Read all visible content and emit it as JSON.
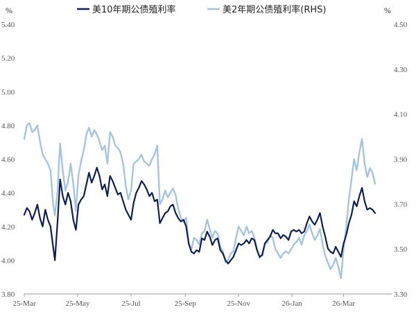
{
  "chart_data": {
    "type": "line",
    "title": "",
    "left_unit": "%",
    "right_unit": "%",
    "x_labels": [
      "25-Mar",
      "25-May",
      "25-Jul",
      "25-Sep",
      "25-Nov",
      "26-Jan",
      "26-Mar"
    ],
    "x_range": [
      "2025-03-01",
      "2026-04-25"
    ],
    "y_left": {
      "range": [
        3.8,
        5.4
      ],
      "ticks": [
        "5.40",
        "5.20",
        "5.00",
        "4.80",
        "4.60",
        "4.40",
        "4.20",
        "4.00",
        "3.80"
      ]
    },
    "y_right": {
      "range": [
        3.3,
        4.5
      ],
      "ticks": [
        "4.50",
        "4.30",
        "4.10",
        "3.90",
        "3.70",
        "3.50",
        "3.30"
      ]
    },
    "grid": false,
    "legend": "top-center",
    "series": [
      {
        "name": "美10年期公债殖利率",
        "axis": "left",
        "color": "#0d1f4f",
        "points": [
          [
            "2025-03-01",
            4.27
          ],
          [
            "2025-03-04",
            4.31
          ],
          [
            "2025-03-07",
            4.29
          ],
          [
            "2025-03-10",
            4.24
          ],
          [
            "2025-03-13",
            4.28
          ],
          [
            "2025-03-16",
            4.33
          ],
          [
            "2025-03-19",
            4.25
          ],
          [
            "2025-03-22",
            4.2
          ],
          [
            "2025-03-25",
            4.3
          ],
          [
            "2025-03-28",
            4.24
          ],
          [
            "2025-03-31",
            4.2
          ],
          [
            "2025-04-03",
            4.08
          ],
          [
            "2025-04-05",
            4.0
          ],
          [
            "2025-04-08",
            4.23
          ],
          [
            "2025-04-11",
            4.48
          ],
          [
            "2025-04-14",
            4.38
          ],
          [
            "2025-04-17",
            4.33
          ],
          [
            "2025-04-20",
            4.4
          ],
          [
            "2025-04-23",
            4.35
          ],
          [
            "2025-04-26",
            4.24
          ],
          [
            "2025-04-29",
            4.18
          ],
          [
            "2025-05-02",
            4.33
          ],
          [
            "2025-05-05",
            4.36
          ],
          [
            "2025-05-08",
            4.38
          ],
          [
            "2025-05-11",
            4.45
          ],
          [
            "2025-05-14",
            4.52
          ],
          [
            "2025-05-17",
            4.46
          ],
          [
            "2025-05-20",
            4.5
          ],
          [
            "2025-05-23",
            4.55
          ],
          [
            "2025-05-26",
            4.5
          ],
          [
            "2025-05-29",
            4.42
          ],
          [
            "2025-06-01",
            4.45
          ],
          [
            "2025-06-04",
            4.38
          ],
          [
            "2025-06-07",
            4.5
          ],
          [
            "2025-06-10",
            4.47
          ],
          [
            "2025-06-13",
            4.43
          ],
          [
            "2025-06-16",
            4.39
          ],
          [
            "2025-06-19",
            4.4
          ],
          [
            "2025-06-22",
            4.35
          ],
          [
            "2025-06-25",
            4.3
          ],
          [
            "2025-06-28",
            4.27
          ],
          [
            "2025-07-01",
            4.24
          ],
          [
            "2025-07-04",
            4.34
          ],
          [
            "2025-07-07",
            4.4
          ],
          [
            "2025-07-10",
            4.43
          ],
          [
            "2025-07-13",
            4.47
          ],
          [
            "2025-07-16",
            4.45
          ],
          [
            "2025-07-19",
            4.42
          ],
          [
            "2025-07-22",
            4.38
          ],
          [
            "2025-07-25",
            4.4
          ],
          [
            "2025-07-28",
            4.35
          ],
          [
            "2025-07-31",
            4.36
          ],
          [
            "2025-08-03",
            4.22
          ],
          [
            "2025-08-06",
            4.25
          ],
          [
            "2025-08-09",
            4.28
          ],
          [
            "2025-08-12",
            4.29
          ],
          [
            "2025-08-15",
            4.32
          ],
          [
            "2025-08-18",
            4.33
          ],
          [
            "2025-08-21",
            4.28
          ],
          [
            "2025-08-24",
            4.25
          ],
          [
            "2025-08-27",
            4.23
          ],
          [
            "2025-08-30",
            4.24
          ],
          [
            "2025-09-02",
            4.2
          ],
          [
            "2025-09-05",
            4.1
          ],
          [
            "2025-09-08",
            4.05
          ],
          [
            "2025-09-11",
            4.04
          ],
          [
            "2025-09-14",
            4.06
          ],
          [
            "2025-09-17",
            4.05
          ],
          [
            "2025-09-20",
            4.13
          ],
          [
            "2025-09-23",
            4.12
          ],
          [
            "2025-09-26",
            4.17
          ],
          [
            "2025-09-29",
            4.14
          ],
          [
            "2025-10-02",
            4.09
          ],
          [
            "2025-10-05",
            4.12
          ],
          [
            "2025-10-08",
            4.13
          ],
          [
            "2025-10-11",
            4.06
          ],
          [
            "2025-10-14",
            4.04
          ],
          [
            "2025-10-17",
            4.0
          ],
          [
            "2025-10-20",
            3.98
          ],
          [
            "2025-10-23",
            4.0
          ],
          [
            "2025-10-26",
            4.02
          ],
          [
            "2025-10-29",
            4.06
          ],
          [
            "2025-11-01",
            4.1
          ],
          [
            "2025-11-04",
            4.09
          ],
          [
            "2025-11-07",
            4.1
          ],
          [
            "2025-11-10",
            4.12
          ],
          [
            "2025-11-13",
            4.1
          ],
          [
            "2025-11-16",
            4.13
          ],
          [
            "2025-11-19",
            4.12
          ],
          [
            "2025-11-22",
            4.06
          ],
          [
            "2025-11-25",
            4.02
          ],
          [
            "2025-11-28",
            4.03
          ],
          [
            "2025-12-01",
            4.1
          ],
          [
            "2025-12-04",
            4.12
          ],
          [
            "2025-12-07",
            4.14
          ],
          [
            "2025-12-10",
            4.18
          ],
          [
            "2025-12-13",
            4.16
          ],
          [
            "2025-12-16",
            4.16
          ],
          [
            "2025-12-19",
            4.13
          ],
          [
            "2025-12-22",
            4.15
          ],
          [
            "2025-12-25",
            4.14
          ],
          [
            "2025-12-28",
            4.12
          ],
          [
            "2025-12-31",
            4.17
          ],
          [
            "2026-01-03",
            4.18
          ],
          [
            "2026-01-06",
            4.17
          ],
          [
            "2026-01-09",
            4.18
          ],
          [
            "2026-01-12",
            4.16
          ],
          [
            "2026-01-15",
            4.17
          ],
          [
            "2026-01-18",
            4.22
          ],
          [
            "2026-01-21",
            4.26
          ],
          [
            "2026-01-24",
            4.23
          ],
          [
            "2026-01-27",
            4.21
          ],
          [
            "2026-01-30",
            4.24
          ],
          [
            "2026-02-02",
            4.28
          ],
          [
            "2026-02-05",
            4.2
          ],
          [
            "2026-02-08",
            4.14
          ],
          [
            "2026-02-11",
            4.07
          ],
          [
            "2026-02-14",
            4.05
          ],
          [
            "2026-02-17",
            4.04
          ],
          [
            "2026-02-20",
            4.08
          ],
          [
            "2026-02-23",
            4.05
          ],
          [
            "2026-02-26",
            4.02
          ],
          [
            "2026-03-01",
            4.1
          ],
          [
            "2026-03-04",
            4.15
          ],
          [
            "2026-03-07",
            4.22
          ],
          [
            "2026-03-10",
            4.27
          ],
          [
            "2026-03-13",
            4.35
          ],
          [
            "2026-03-16",
            4.32
          ],
          [
            "2026-03-19",
            4.38
          ],
          [
            "2026-03-22",
            4.43
          ],
          [
            "2026-03-25",
            4.35
          ],
          [
            "2026-03-28",
            4.3
          ],
          [
            "2026-03-31",
            4.31
          ],
          [
            "2026-04-03",
            4.3
          ],
          [
            "2026-04-06",
            4.28
          ]
        ]
      },
      {
        "name": "美2年期公债殖利率(RHS)",
        "axis": "right",
        "color": "#a6c4e0",
        "points": [
          [
            "2025-03-01",
            3.99
          ],
          [
            "2025-03-04",
            4.05
          ],
          [
            "2025-03-07",
            4.06
          ],
          [
            "2025-03-10",
            4.02
          ],
          [
            "2025-03-13",
            4.03
          ],
          [
            "2025-03-16",
            4.05
          ],
          [
            "2025-03-19",
            3.98
          ],
          [
            "2025-03-22",
            3.92
          ],
          [
            "2025-03-25",
            3.9
          ],
          [
            "2025-03-28",
            3.88
          ],
          [
            "2025-03-31",
            3.85
          ],
          [
            "2025-04-03",
            3.7
          ],
          [
            "2025-04-05",
            3.65
          ],
          [
            "2025-04-08",
            3.76
          ],
          [
            "2025-04-11",
            3.97
          ],
          [
            "2025-04-14",
            3.85
          ],
          [
            "2025-04-17",
            3.76
          ],
          [
            "2025-04-20",
            3.8
          ],
          [
            "2025-04-23",
            3.88
          ],
          [
            "2025-04-26",
            3.79
          ],
          [
            "2025-04-29",
            3.67
          ],
          [
            "2025-05-02",
            3.83
          ],
          [
            "2025-05-05",
            3.89
          ],
          [
            "2025-05-08",
            3.94
          ],
          [
            "2025-05-11",
            4.01
          ],
          [
            "2025-05-14",
            4.04
          ],
          [
            "2025-05-17",
            4.0
          ],
          [
            "2025-05-20",
            4.03
          ],
          [
            "2025-05-23",
            4.01
          ],
          [
            "2025-05-26",
            3.98
          ],
          [
            "2025-05-29",
            3.94
          ],
          [
            "2025-06-01",
            3.96
          ],
          [
            "2025-06-04",
            3.88
          ],
          [
            "2025-06-07",
            4.02
          ],
          [
            "2025-06-10",
            4.0
          ],
          [
            "2025-06-13",
            3.96
          ],
          [
            "2025-06-16",
            3.95
          ],
          [
            "2025-06-19",
            3.93
          ],
          [
            "2025-06-22",
            3.88
          ],
          [
            "2025-06-25",
            3.78
          ],
          [
            "2025-06-28",
            3.72
          ],
          [
            "2025-07-01",
            3.76
          ],
          [
            "2025-07-04",
            3.88
          ],
          [
            "2025-07-07",
            3.89
          ],
          [
            "2025-07-10",
            3.9
          ],
          [
            "2025-07-13",
            3.92
          ],
          [
            "2025-07-16",
            3.89
          ],
          [
            "2025-07-19",
            3.88
          ],
          [
            "2025-07-22",
            3.87
          ],
          [
            "2025-07-25",
            3.9
          ],
          [
            "2025-07-28",
            3.92
          ],
          [
            "2025-07-31",
            3.96
          ],
          [
            "2025-08-03",
            3.7
          ],
          [
            "2025-08-06",
            3.72
          ],
          [
            "2025-08-09",
            3.76
          ],
          [
            "2025-08-12",
            3.73
          ],
          [
            "2025-08-15",
            3.75
          ],
          [
            "2025-08-18",
            3.77
          ],
          [
            "2025-08-21",
            3.74
          ],
          [
            "2025-08-24",
            3.68
          ],
          [
            "2025-08-27",
            3.64
          ],
          [
            "2025-08-30",
            3.62
          ],
          [
            "2025-09-02",
            3.64
          ],
          [
            "2025-09-05",
            3.52
          ],
          [
            "2025-09-08",
            3.5
          ],
          [
            "2025-09-11",
            3.55
          ],
          [
            "2025-09-14",
            3.54
          ],
          [
            "2025-09-17",
            3.52
          ],
          [
            "2025-09-20",
            3.57
          ],
          [
            "2025-09-23",
            3.58
          ],
          [
            "2025-09-26",
            3.63
          ],
          [
            "2025-09-29",
            3.59
          ],
          [
            "2025-10-02",
            3.55
          ],
          [
            "2025-10-05",
            3.58
          ],
          [
            "2025-10-08",
            3.57
          ],
          [
            "2025-10-11",
            3.51
          ],
          [
            "2025-10-14",
            3.49
          ],
          [
            "2025-10-17",
            3.44
          ],
          [
            "2025-10-20",
            3.45
          ],
          [
            "2025-10-23",
            3.48
          ],
          [
            "2025-10-26",
            3.49
          ],
          [
            "2025-10-29",
            3.55
          ],
          [
            "2025-11-01",
            3.6
          ],
          [
            "2025-11-04",
            3.58
          ],
          [
            "2025-11-07",
            3.56
          ],
          [
            "2025-11-10",
            3.6
          ],
          [
            "2025-11-13",
            3.57
          ],
          [
            "2025-11-16",
            3.58
          ],
          [
            "2025-11-19",
            3.55
          ],
          [
            "2025-11-22",
            3.5
          ],
          [
            "2025-11-25",
            3.46
          ],
          [
            "2025-11-28",
            3.48
          ],
          [
            "2025-12-01",
            3.52
          ],
          [
            "2025-12-04",
            3.53
          ],
          [
            "2025-12-07",
            3.56
          ],
          [
            "2025-12-10",
            3.55
          ],
          [
            "2025-12-13",
            3.5
          ],
          [
            "2025-12-16",
            3.48
          ],
          [
            "2025-12-19",
            3.46
          ],
          [
            "2025-12-22",
            3.48
          ],
          [
            "2025-12-25",
            3.49
          ],
          [
            "2025-12-28",
            3.48
          ],
          [
            "2025-12-31",
            3.5
          ],
          [
            "2026-01-03",
            3.52
          ],
          [
            "2026-01-06",
            3.53
          ],
          [
            "2026-01-09",
            3.55
          ],
          [
            "2026-01-12",
            3.52
          ],
          [
            "2026-01-15",
            3.56
          ],
          [
            "2026-01-18",
            3.58
          ],
          [
            "2026-01-21",
            3.61
          ],
          [
            "2026-01-24",
            3.57
          ],
          [
            "2026-01-27",
            3.54
          ],
          [
            "2026-01-30",
            3.56
          ],
          [
            "2026-02-02",
            3.59
          ],
          [
            "2026-02-05",
            3.52
          ],
          [
            "2026-02-08",
            3.47
          ],
          [
            "2026-02-11",
            3.44
          ],
          [
            "2026-02-14",
            3.41
          ],
          [
            "2026-02-17",
            3.43
          ],
          [
            "2026-02-20",
            3.46
          ],
          [
            "2026-02-23",
            3.42
          ],
          [
            "2026-02-26",
            3.37
          ],
          [
            "2026-03-01",
            3.5
          ],
          [
            "2026-03-04",
            3.6
          ],
          [
            "2026-03-07",
            3.72
          ],
          [
            "2026-03-10",
            3.81
          ],
          [
            "2026-03-13",
            3.9
          ],
          [
            "2026-03-16",
            3.85
          ],
          [
            "2026-03-19",
            3.93
          ],
          [
            "2026-03-22",
            3.99
          ],
          [
            "2026-03-25",
            3.88
          ],
          [
            "2026-03-28",
            3.82
          ],
          [
            "2026-03-31",
            3.86
          ],
          [
            "2026-04-03",
            3.84
          ],
          [
            "2026-04-06",
            3.79
          ]
        ]
      }
    ]
  }
}
